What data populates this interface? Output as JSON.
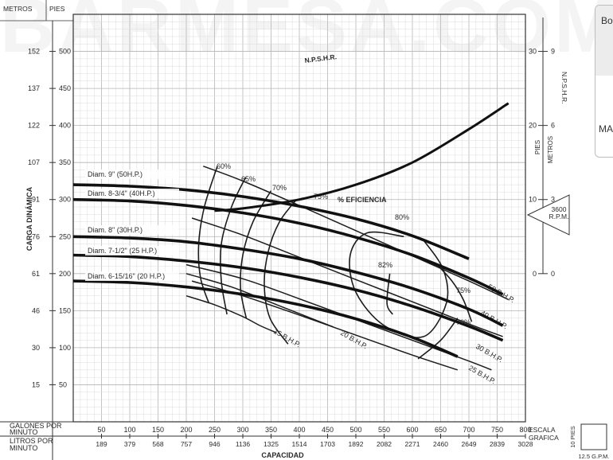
{
  "watermark": "BARMESA.COM",
  "side_card": {
    "head": "Bo",
    "body": "MA"
  },
  "chart_data": {
    "type": "line",
    "xlabel": "CAPACIDAD",
    "ylabel": "CARGA DINÁMICA",
    "xlim": [
      0,
      800
    ],
    "ylim": [
      0,
      550
    ],
    "x_unit_rows": [
      {
        "label": "GALONES POR MINUTO",
        "ticks": [
          50,
          100,
          150,
          200,
          250,
          300,
          350,
          400,
          450,
          500,
          550,
          600,
          650,
          700,
          750,
          800
        ]
      },
      {
        "label": "LITROS POR MINUTO",
        "ticks": [
          189,
          379,
          568,
          757,
          946,
          1136,
          1325,
          1514,
          1703,
          1892,
          2082,
          2271,
          2460,
          2649,
          2839,
          3028
        ]
      }
    ],
    "y_left": {
      "metros_label": "METROS",
      "pies_label": "PIES",
      "pies_ticks": [
        50,
        100,
        150,
        200,
        250,
        300,
        350,
        400,
        450,
        500
      ],
      "metros_ticks": [
        15,
        30,
        46,
        61,
        76,
        91,
        107,
        122,
        137,
        152
      ]
    },
    "y_right": {
      "label_npshr": "N.P.S.H.R.",
      "pies_label": "PIES",
      "metros_label": "METROS",
      "pies_ticks": [
        0,
        10,
        20,
        30
      ],
      "metros_ticks": [
        0,
        3,
        6,
        9
      ],
      "npsh_ft_range": [
        0,
        30
      ]
    },
    "rpm_badge": "3600 R.P.M.",
    "scale_box": {
      "label": "ESCALA GRAFICA",
      "height_label": "10 PIES",
      "width_label": "12.5 G.P.M."
    },
    "series": [
      {
        "name": "Diam. 9\" (50H.P.)",
        "x": [
          0,
          100,
          200,
          300,
          400,
          500,
          600,
          700
        ],
        "y": [
          320,
          318,
          313,
          304,
          291,
          274,
          251,
          220
        ]
      },
      {
        "name": "Diam. 8-3/4\" (40H.P.)",
        "x": [
          0,
          100,
          200,
          300,
          400,
          500,
          600,
          700,
          760
        ],
        "y": [
          300,
          298,
          292,
          282,
          268,
          249,
          225,
          194,
          172
        ]
      },
      {
        "name": "Diam. 8\" (30H.P.)",
        "x": [
          0,
          100,
          200,
          300,
          400,
          500,
          600,
          700,
          760
        ],
        "y": [
          250,
          248,
          243,
          233,
          220,
          202,
          180,
          152,
          130
        ]
      },
      {
        "name": "Diam. 7-1/2\" (25 H.P.)",
        "x": [
          0,
          100,
          200,
          300,
          400,
          500,
          600,
          700,
          760
        ],
        "y": [
          225,
          223,
          217,
          208,
          195,
          178,
          156,
          129,
          110
        ]
      },
      {
        "name": "Diam. 6-15/16\" (20 H.P.)",
        "x": [
          0,
          100,
          200,
          300,
          400,
          500,
          600,
          680
        ],
        "y": [
          190,
          188,
          182,
          172,
          158,
          139,
          114,
          88
        ]
      },
      {
        "name": "N.P.S.H.R.",
        "axis": "npsh_ft",
        "x": [
          250,
          300,
          400,
          500,
          600,
          700,
          770
        ],
        "y": [
          8.5,
          8.8,
          10.0,
          12.0,
          15.0,
          19.5,
          23.0
        ]
      }
    ],
    "efficiency_label": "% EFICIENCIA",
    "efficiency_contours": [
      {
        "label": "60%",
        "x": [
          255,
          232,
          222,
          225,
          240
        ],
        "y": [
          345,
          290,
          240,
          195,
          160
        ]
      },
      {
        "label": "65%",
        "x": [
          305,
          280,
          262,
          262,
          272
        ],
        "y": [
          330,
          290,
          240,
          190,
          145
        ]
      },
      {
        "label": "70%",
        "x": [
          350,
          318,
          300,
          296,
          306
        ],
        "y": [
          312,
          270,
          225,
          180,
          140
        ]
      },
      {
        "label": "75%",
        "x": [
          395,
          365,
          345,
          338,
          348,
          380
        ],
        "y": [
          300,
          270,
          230,
          185,
          140,
          105
        ]
      },
      {
        "label": "80%",
        "x": [
          585,
          520,
          490,
          500,
          550,
          620,
          660,
          655,
          620
        ],
        "y": [
          250,
          255,
          225,
          175,
          130,
          115,
          160,
          205,
          245
        ]
      },
      {
        "label": "82%",
        "x": [
          560,
          555,
          565
        ],
        "y": [
          200,
          160,
          145
        ]
      },
      {
        "label": "75%",
        "x": [
          640,
          670,
          690,
          705
        ],
        "y": [
          215,
          190,
          165,
          135
        ]
      },
      {
        "label": "70%",
        "x": [
          610,
          650,
          680
        ],
        "y": [
          85,
          110,
          140
        ]
      }
    ],
    "bhp_lines": [
      {
        "label": "50 B.H.P.",
        "x": [
          230,
          300,
          400,
          500,
          600,
          700,
          770
        ],
        "y": [
          345,
          325,
          292,
          258,
          224,
          190,
          165
        ]
      },
      {
        "label": "40 B.H.P.",
        "x": [
          210,
          300,
          400,
          500,
          600,
          700,
          760
        ],
        "y": [
          275,
          252,
          222,
          192,
          162,
          132,
          115
        ]
      },
      {
        "label": "30 B.H.P.",
        "x": [
          200,
          300,
          400,
          500,
          600,
          700,
          740
        ],
        "y": [
          212,
          193,
          166,
          138,
          110,
          82,
          70
        ]
      },
      {
        "label": "25 B.H.P.",
        "x": [
          210,
          300,
          400,
          500,
          600,
          680
        ],
        "y": [
          190,
          170,
          144,
          117,
          90,
          70
        ]
      },
      {
        "label": "20 B.H.P.",
        "x": [
          200,
          280,
          360,
          420,
          460
        ],
        "y": [
          200,
          182,
          158,
          140,
          128
        ]
      },
      {
        "label": "15 B.H.P.",
        "x": [
          200,
          250,
          300,
          330,
          360
        ],
        "y": [
          170,
          158,
          142,
          130,
          120
        ]
      }
    ],
    "grid": true
  }
}
